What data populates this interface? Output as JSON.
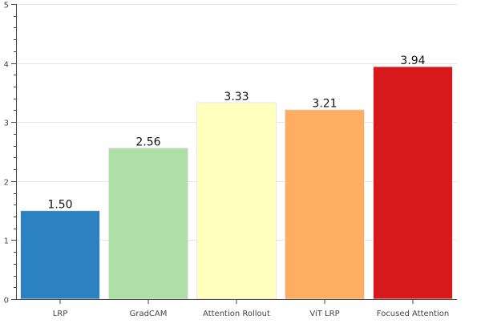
{
  "chart_data": {
    "type": "bar",
    "title": "",
    "xlabel": "",
    "ylabel": "",
    "categories": [
      "LRP",
      "GradCAM",
      "Attention Rollout",
      "ViT LRP",
      "Focused Attention"
    ],
    "values": [
      1.5,
      2.56,
      3.33,
      3.21,
      3.94
    ],
    "value_labels": [
      "1.50",
      "2.56",
      "3.33",
      "3.21",
      "3.94"
    ],
    "colors": [
      "#2c82be",
      "#addfa6",
      "#ffffbe",
      "#fdae61",
      "#d7191c"
    ],
    "ylim": [
      0,
      5
    ],
    "yticks": [
      0,
      1,
      2,
      3,
      4,
      5
    ],
    "ytick_labels": [
      "0",
      "1",
      "2",
      "3",
      "4",
      "5"
    ],
    "grid": true,
    "legend": "none"
  }
}
